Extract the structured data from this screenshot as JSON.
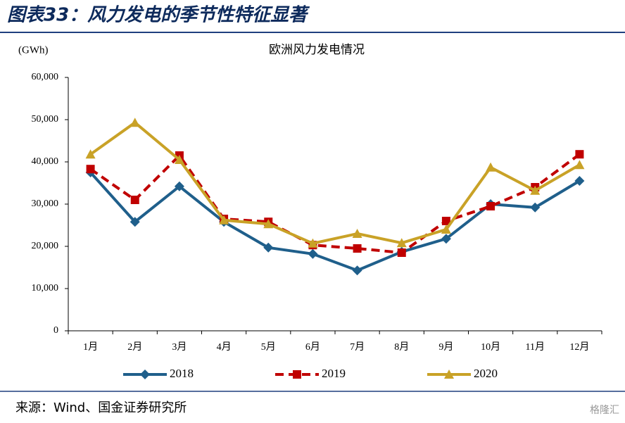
{
  "header": {
    "title": "图表33：风力发电的季节性特征显著"
  },
  "chart_data": {
    "type": "line",
    "title": "欧洲风力发电情况",
    "y_label": "(GWh)",
    "categories": [
      "1月",
      "2月",
      "3月",
      "4月",
      "5月",
      "6月",
      "7月",
      "8月",
      "9月",
      "10月",
      "11月",
      "12月"
    ],
    "series": [
      {
        "name": "2018",
        "color": "#1f5f8b",
        "marker": "diamond",
        "dash": false,
        "values": [
          37500,
          25800,
          34200,
          25800,
          19700,
          18200,
          14300,
          18700,
          21800,
          30000,
          29200,
          35500
        ]
      },
      {
        "name": "2019",
        "color": "#c00000",
        "marker": "square",
        "dash": true,
        "values": [
          38300,
          31000,
          41500,
          26500,
          25800,
          20300,
          19500,
          18500,
          26000,
          29500,
          34000,
          41800
        ]
      },
      {
        "name": "2020",
        "color": "#c9a227",
        "marker": "triangle",
        "dash": false,
        "values": [
          41800,
          49300,
          40500,
          26200,
          25300,
          20700,
          23000,
          20800,
          24000,
          38700,
          33200,
          39300
        ]
      }
    ],
    "ylim": [
      0,
      60000
    ],
    "yticks": [
      0,
      {
        "value": 10000,
        "label": "10,000"
      },
      {
        "value": 20000,
        "label": "20,000"
      },
      {
        "value": 30000,
        "label": "30,000"
      },
      {
        "value": 40000,
        "label": "40,000"
      },
      {
        "value": 50000,
        "label": "50,000"
      },
      {
        "value": 60000,
        "label": "60,000"
      }
    ],
    "legend": "bottom",
    "grid": false
  },
  "footer": {
    "source": "来源：Wind、国金证券研究所",
    "watermark": "格隆汇"
  }
}
